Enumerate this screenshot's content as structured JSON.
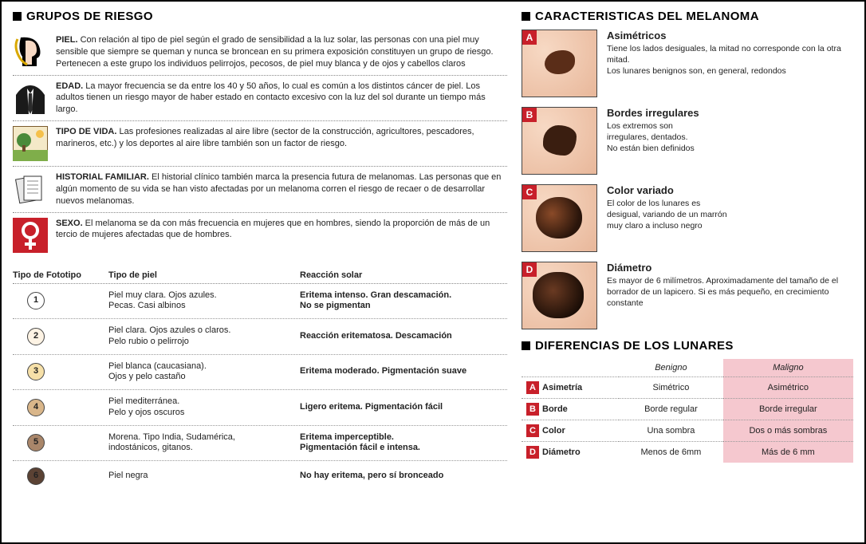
{
  "colors": {
    "accent_red": "#c8202a",
    "maligno_bg": "#f5c8cf",
    "border": "#000000",
    "dotted": "#888888"
  },
  "left": {
    "title": "GRUPOS DE RIESGO",
    "risks": [
      {
        "label": "PIEL.",
        "text": "Con relación al tipo de piel según el grado de sensibilidad a la luz solar, las personas con una piel muy sensible que siempre se queman y nunca se broncean en su primera exposición constituyen un grupo de riesgo. Pertenecen a este grupo los individuos pelirrojos, pecosos, de piel muy blanca y de ojos y cabellos claros"
      },
      {
        "label": "EDAD.",
        "text": "La mayor frecuencia se da entre los 40 y 50 años, lo cual es común a los distintos cáncer de piel. Los adultos tienen un riesgo mayor de haber estado en contacto excesivo con la luz del sol durante un tiempo más largo."
      },
      {
        "label": "TIPO DE VIDA.",
        "text": "Las profesiones realizadas al aire libre (sector de la construcción, agricultores, pescadores, marineros, etc.) y los deportes al aire libre también son un factor de riesgo."
      },
      {
        "label": "HISTORIAL FAMILIAR.",
        "text": "El historial clínico también marca la presencia futura de melanomas. Las personas que en algún momento de su vida se han visto afectadas por un melanoma corren el riesgo de recaer o de desarrollar nuevos melanomas."
      },
      {
        "label": "SEXO.",
        "text": "El melanoma se da con más frecuencia en mujeres que en hombres, siendo la proporción de más de un tercio de mujeres afectadas que de hombres."
      }
    ],
    "table": {
      "headers": {
        "c1": "Tipo de Fototipo",
        "c2": "Tipo de piel",
        "c3": "Reacción solar"
      },
      "rows": [
        {
          "n": "1",
          "bg": "#ffffff",
          "piel": "Piel muy clara. Ojos azules.\nPecas. Casi albinos",
          "reac": "Eritema intenso. Gran descamación.\nNo se pigmentan"
        },
        {
          "n": "2",
          "bg": "#fdf3e4",
          "piel": "Piel clara. Ojos azules o claros.\nPelo rubio o pelirrojo",
          "reac": "Reacción eritematosa. Descamación"
        },
        {
          "n": "3",
          "bg": "#f6e0a8",
          "piel": "Piel blanca (caucasiana).\nOjos y pelo castaño",
          "reac": "Eritema moderado. Pigmentación suave"
        },
        {
          "n": "4",
          "bg": "#d9b68a",
          "piel": "Piel mediterránea.\nPelo y ojos oscuros",
          "reac": "Ligero eritema. Pigmentación fácil"
        },
        {
          "n": "5",
          "bg": "#a9866a",
          "piel": "Morena. Tipo India, Sudamérica,\nindostánicos, gitanos.",
          "reac": "Eritema imperceptible.\nPigmentación fácil e intensa."
        },
        {
          "n": "6",
          "bg": "#5b4234",
          "piel": "Piel negra",
          "reac": "No hay eritema, pero sí bronceado"
        }
      ]
    }
  },
  "right": {
    "title1": "CARACTERISTICAS DEL MELANOMA",
    "abcd": [
      {
        "letter": "A",
        "title": "Asimétricos",
        "desc": "Tiene los lados desiguales, la mitad no corresponde con la otra mitad.\nLos lunares benignos son, en general, redondos"
      },
      {
        "letter": "B",
        "title": "Bordes irregulares",
        "desc": "Los extremos son\nirregulares, dentados.\nNo están bien definidos"
      },
      {
        "letter": "C",
        "title": "Color variado",
        "desc": "El color de los lunares es\ndesigual, variando de un marrón\nmuy claro a incluso negro"
      },
      {
        "letter": "D",
        "title": "Diámetro",
        "desc": "Es mayor de 6 milímetros. Aproximadamente del tamaño de el borrador de un lapicero. Si es más pequeño, en crecimiento constante"
      }
    ],
    "title2": "DIFERENCIAS DE LOS LUNARES",
    "diff": {
      "headers": {
        "benigno": "Benigno",
        "maligno": "Maligno"
      },
      "rows": [
        {
          "l": "A",
          "label": "Asimetría",
          "b": "Simétrico",
          "m": "Asimétrico"
        },
        {
          "l": "B",
          "label": "Borde",
          "b": "Borde regular",
          "m": "Borde irregular"
        },
        {
          "l": "C",
          "label": "Color",
          "b": "Una sombra",
          "m": "Dos o más sombras"
        },
        {
          "l": "D",
          "label": "Diámetro",
          "b": "Menos de 6mm",
          "m": "Más de 6 mm"
        }
      ]
    }
  }
}
